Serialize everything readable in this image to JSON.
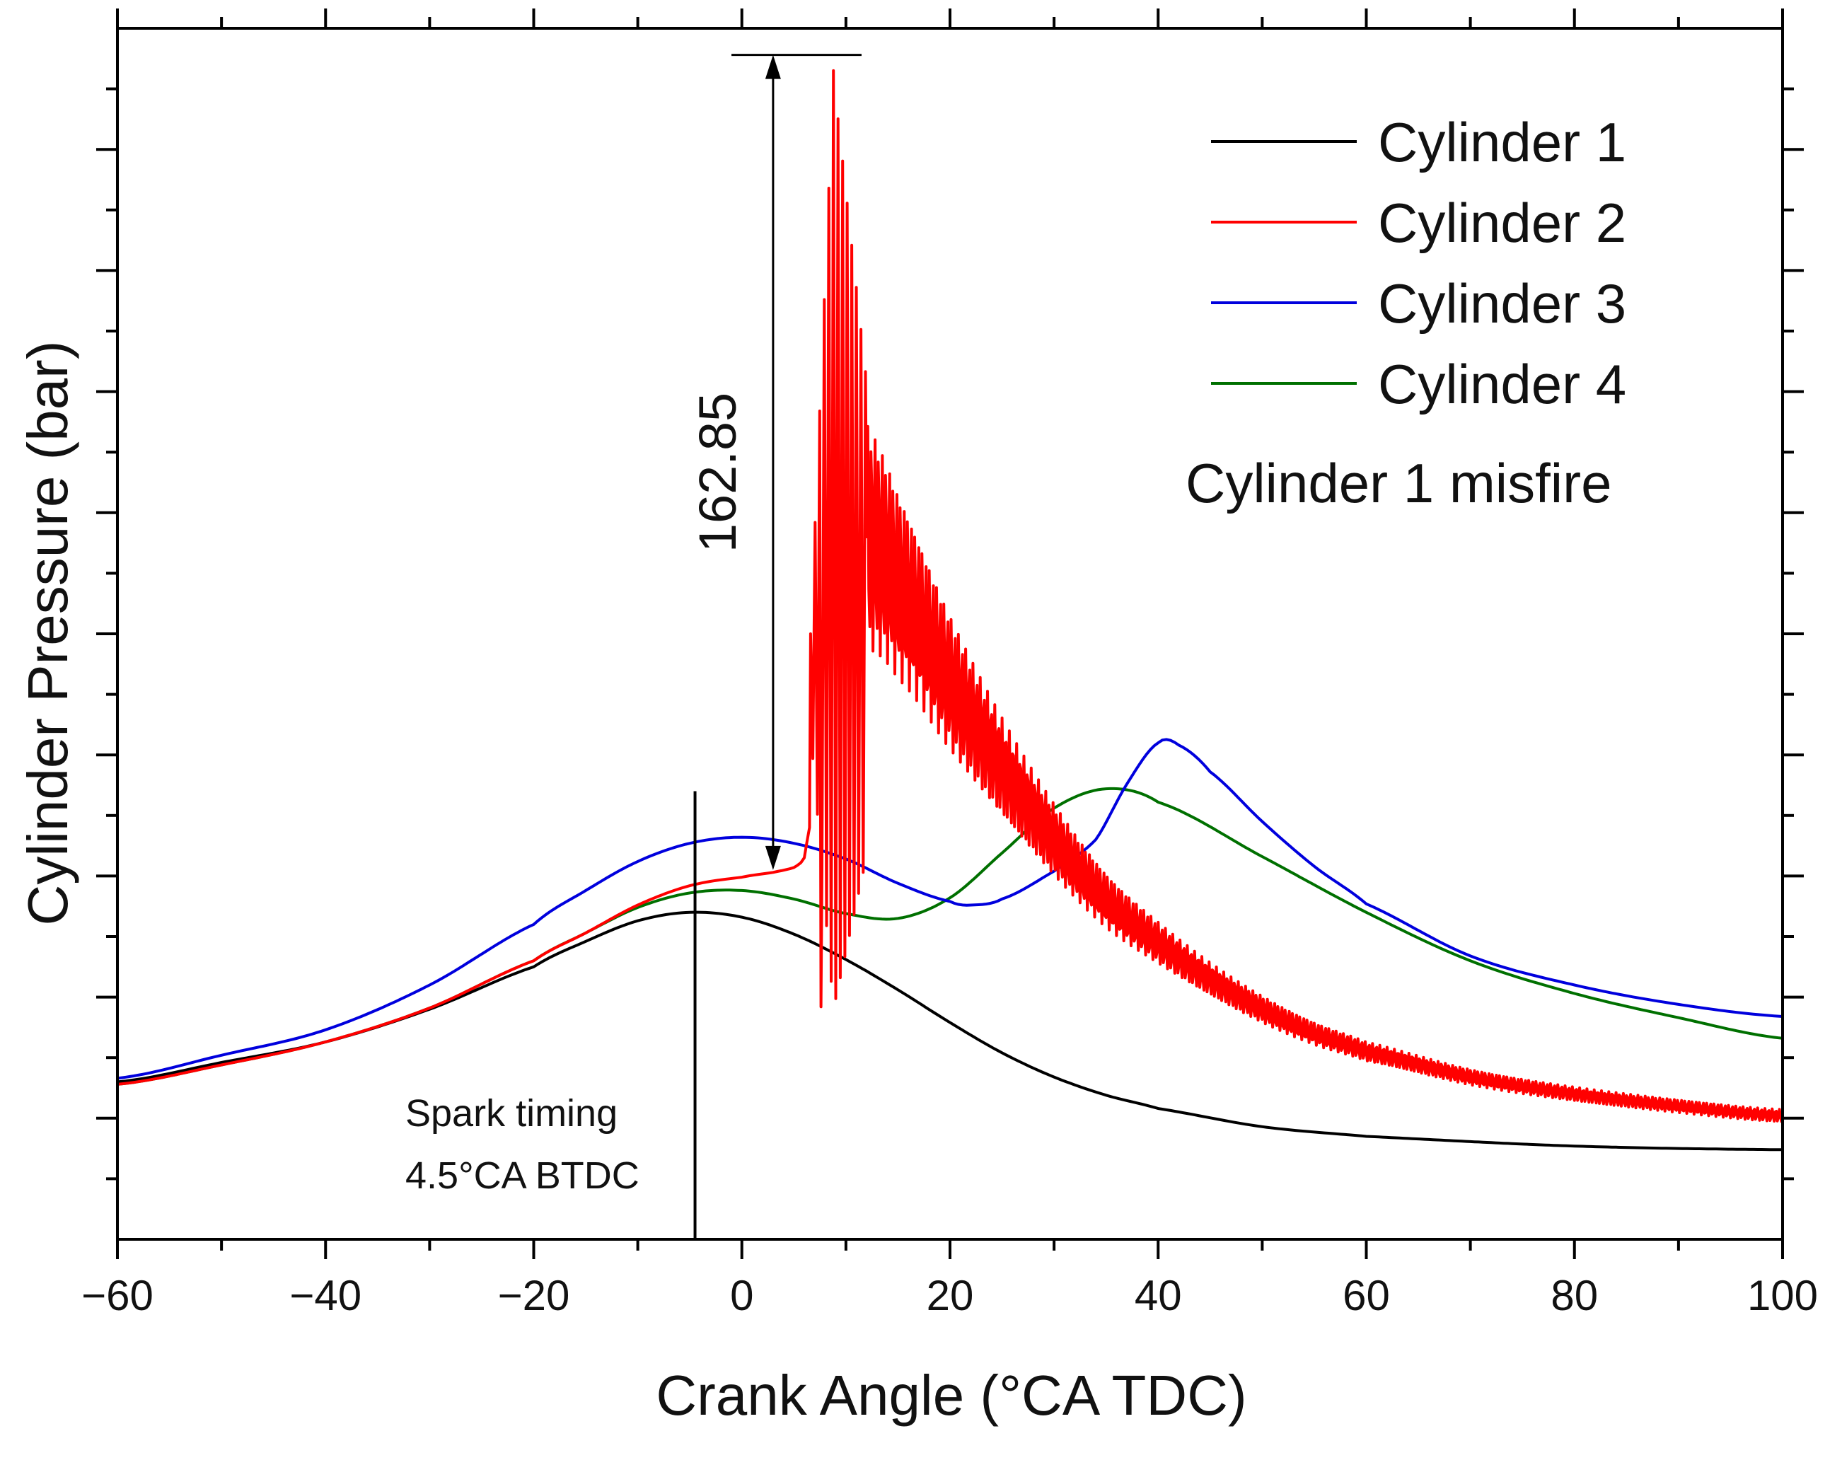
{
  "chart_data": {
    "type": "line",
    "title": "",
    "xlabel": "Crank Angle (°CA TDC)",
    "ylabel": "Cylinder Pressure (bar)",
    "xlim": [
      -60,
      100
    ],
    "ylim": [
      0,
      100
    ],
    "y_tick_labels_shown": false,
    "x_major_ticks": [
      -60,
      -40,
      -20,
      0,
      20,
      40,
      60,
      80,
      100
    ],
    "x_tick_labels": [
      "−60",
      "−40",
      "−20",
      "0",
      "20",
      "40",
      "60",
      "80",
      "100"
    ],
    "x_minor_step": 10,
    "y_major_ticks": [
      10,
      20,
      30,
      40,
      50,
      60,
      70,
      80,
      90,
      100
    ],
    "legend": {
      "position": "top-right"
    },
    "series": [
      {
        "name": "Cylinder 1",
        "color": "#000000",
        "x": [
          -60,
          -50,
          -40,
          -30,
          -20,
          -15,
          -10,
          -5,
          0,
          5,
          10,
          15,
          20,
          25,
          30,
          35,
          40,
          50,
          60,
          80,
          100
        ],
        "y": [
          13,
          14.6,
          16.3,
          19.0,
          22.5,
          24.6,
          26.3,
          27.0,
          26.6,
          25.2,
          23.1,
          20.6,
          17.9,
          15.4,
          13.4,
          11.9,
          10.8,
          9.3,
          8.5,
          7.7,
          7.4
        ]
      },
      {
        "name": "Cylinder 2",
        "color": "#ff0000",
        "x": [
          -60,
          -50,
          -40,
          -30,
          -20,
          -15,
          -10,
          -5,
          0,
          3,
          5,
          6,
          6.5
        ],
        "y": [
          12.8,
          14.4,
          16.3,
          19.1,
          23.0,
          25.3,
          27.6,
          29.2,
          29.9,
          30.3,
          30.7,
          31.5,
          34.0
        ],
        "knock_x_start": 6.6,
        "knock_x_end": 12,
        "knock_peak": {
          "x": 8.8,
          "y": 96.5
        },
        "knock_min": {
          "x": 7.6,
          "y": 19.2
        },
        "decay_x": [
          12,
          15,
          20,
          25,
          30,
          35,
          40,
          45,
          50,
          55,
          60,
          70,
          80,
          90,
          100
        ],
        "decay_y": [
          58,
          54,
          46,
          39,
          33,
          28,
          24.5,
          21.5,
          19.0,
          17.0,
          15.5,
          13.4,
          12.0,
          11.0,
          10.2
        ]
      },
      {
        "name": "Cylinder 3",
        "color": "#0000dd",
        "x": [
          -60,
          -50,
          -40,
          -30,
          -20,
          -15,
          -10,
          -5,
          0,
          5,
          10,
          15,
          20,
          22,
          25,
          30,
          34,
          37,
          40,
          42,
          45,
          50,
          55,
          60,
          70,
          80,
          90,
          100
        ],
        "y": [
          13.3,
          15.2,
          17.3,
          21.0,
          26.0,
          28.8,
          31.2,
          32.7,
          33.2,
          32.7,
          31.4,
          29.4,
          27.9,
          27.6,
          28.1,
          30.4,
          33.0,
          37.6,
          41.0,
          40.8,
          38.6,
          34.5,
          30.8,
          27.7,
          23.4,
          21.0,
          19.4,
          18.4
        ]
      },
      {
        "name": "Cylinder 4",
        "color": "#007000",
        "x": [
          -60,
          -50,
          -40,
          -30,
          -20,
          -15,
          -10,
          -5,
          0,
          5,
          10,
          15,
          20,
          25,
          30,
          35,
          40,
          50,
          60,
          70,
          80,
          90,
          100
        ],
        "y": [
          12.8,
          14.4,
          16.3,
          19.1,
          23.0,
          25.3,
          27.4,
          28.6,
          28.8,
          28.1,
          26.9,
          26.5,
          28.2,
          31.9,
          35.6,
          37.2,
          36.1,
          31.6,
          27.0,
          23.0,
          20.3,
          18.3,
          16.6
        ]
      }
    ],
    "annotations": [
      {
        "text": "162.85",
        "type": "dimension-arrow",
        "x": 3,
        "y_from": 30.5,
        "y_to": 97.8
      },
      {
        "text": "Spark timing",
        "type": "label",
        "x": -20,
        "y": 12.5
      },
      {
        "text": "4.5°CA BTDC",
        "type": "label",
        "x": -20,
        "y": 8.0
      },
      {
        "text": "Cylinder 1 misfire",
        "type": "note",
        "position": "top-right"
      }
    ],
    "spark_marker_x": -4.5,
    "spark_marker_top_y": 37.0
  }
}
